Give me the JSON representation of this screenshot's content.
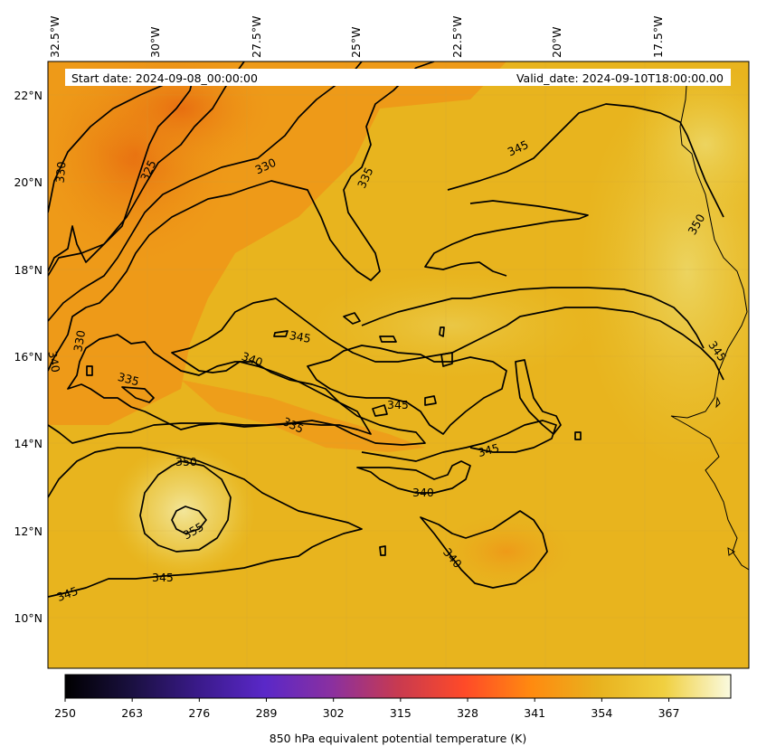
{
  "header": {
    "start_date": "Start date: 2024-09-08_00:00:00",
    "valid_date": "Valid_date: 2024-09-10T18:00:00.00"
  },
  "map": {
    "lon_ticks": [
      "32.5°W",
      "30°W",
      "27.5°W",
      "25°W",
      "22.5°W",
      "20°W",
      "17.5°W"
    ],
    "lat_ticks": [
      "22°N",
      "20°N",
      "18°N",
      "16°N",
      "14°N",
      "12°N",
      "10°N"
    ],
    "field_colors": {
      "warm_orange": "#ea7a10",
      "orange": "#ee9a18",
      "amber": "#e8b21e",
      "yellow": "#e9c22e",
      "pale_yellow": "#efe07a",
      "contour": "#000000"
    }
  },
  "contour_labels": [
    {
      "text": "330"
    },
    {
      "text": "330"
    },
    {
      "text": "325"
    },
    {
      "text": "335"
    },
    {
      "text": "345"
    },
    {
      "text": "350"
    },
    {
      "text": "330"
    },
    {
      "text": "340"
    },
    {
      "text": "345"
    },
    {
      "text": "335"
    },
    {
      "text": "340"
    },
    {
      "text": "345"
    },
    {
      "text": "335"
    },
    {
      "text": "345"
    },
    {
      "text": "345"
    },
    {
      "text": "350"
    },
    {
      "text": "355"
    },
    {
      "text": "340"
    },
    {
      "text": "345"
    },
    {
      "text": "345"
    },
    {
      "text": "340"
    }
  ],
  "colorbar": {
    "title": "850 hPa equivalent potential temperature (K)",
    "ticks": [
      "250",
      "263",
      "276",
      "289",
      "302",
      "315",
      "328",
      "341",
      "354",
      "367"
    ],
    "colors": [
      "#000000",
      "#1a1040",
      "#3a1a8a",
      "#5a28c8",
      "#8a30a0",
      "#c83a50",
      "#ff4a28",
      "#ff8a10",
      "#e8b21e",
      "#f0d040",
      "#fafae0"
    ]
  }
}
